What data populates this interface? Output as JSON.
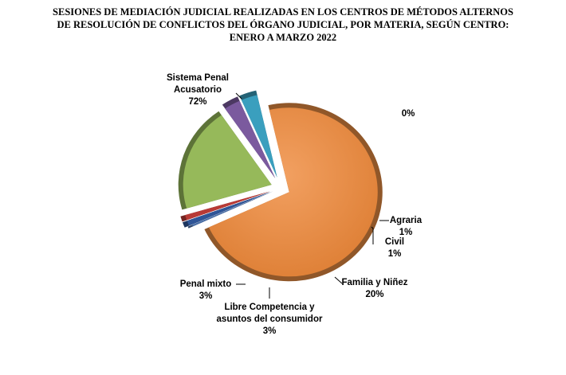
{
  "chart_data": {
    "type": "pie",
    "title_lines": [
      "SESIONES DE MEDIACIÓN  JUDICIAL  REALIZADAS  EN LOS CENTROS DE MÉTODOS ALTERNOS",
      "DE RESOLUCIÓN DE CONFLICTOS DEL ÓRGANO JUDICIAL,  POR MATERIA,  SEGÚN CENTRO:",
      "ENERO  A MARZO  2022"
    ],
    "slices": [
      {
        "label_lines": [
          "Sistema Penal",
          "Acusatorio"
        ],
        "percent_label": "72%",
        "value": 72,
        "color": "#E98D42"
      },
      {
        "label_lines": [],
        "percent_label": "0%",
        "value": 0,
        "color": "#4A6FA8"
      },
      {
        "label_lines": [
          "Agraria"
        ],
        "percent_label": "1%",
        "value": 1,
        "color": "#2F5597"
      },
      {
        "label_lines": [
          "Civil"
        ],
        "percent_label": "1%",
        "value": 1,
        "color": "#B83A36"
      },
      {
        "label_lines": [
          "Familia  y Niñez"
        ],
        "percent_label": "20%",
        "value": 20,
        "color": "#96B95A"
      },
      {
        "label_lines": [
          "Libre Competencia y",
          "asuntos del consumidor"
        ],
        "percent_label": "3%",
        "value": 3,
        "color": "#7B5A9E"
      },
      {
        "label_lines": [
          "Penal mixto"
        ],
        "percent_label": "3%",
        "value": 3,
        "color": "#3A9FBE"
      }
    ]
  }
}
